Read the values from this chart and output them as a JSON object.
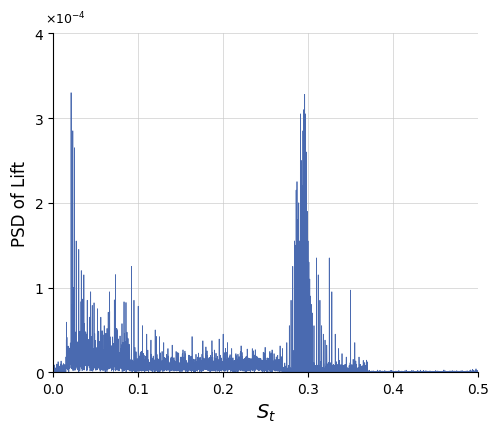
{
  "title": "",
  "xlabel": "$S_t$",
  "ylabel": "PSD of Lift",
  "xlim": [
    0,
    0.5
  ],
  "ylim": [
    0,
    0.0004
  ],
  "line_color": "#4a6ab0",
  "line_width": 0.55,
  "grid_color": "#c8c8c8",
  "background_color": "#ffffff",
  "xlabel_fontsize": 14,
  "ylabel_fontsize": 12,
  "tick_fontsize": 10,
  "noise_floor": 3e-06,
  "noise_seed": 17,
  "left_cluster_peaks": [
    [
      0.021,
      0.00033
    ],
    [
      0.023,
      0.000285
    ],
    [
      0.025,
      0.000265
    ],
    [
      0.027,
      0.000155
    ],
    [
      0.03,
      0.000145
    ],
    [
      0.033,
      0.00012
    ],
    [
      0.036,
      0.000115
    ],
    [
      0.04,
      8.5e-05
    ],
    [
      0.044,
      9.5e-05
    ],
    [
      0.048,
      8.2e-05
    ],
    [
      0.052,
      7.5e-05
    ],
    [
      0.056,
      6.5e-05
    ],
    [
      0.06,
      5.5e-05
    ],
    [
      0.065,
      4.5e-05
    ],
    [
      0.07,
      3.8e-05
    ],
    [
      0.075,
      3.2e-05
    ],
    [
      0.08,
      2.8e-05
    ],
    [
      0.085,
      2.2e-05
    ]
  ],
  "mid_sparse_peaks": [
    [
      0.092,
      0.000125
    ],
    [
      0.095,
      8.5e-05
    ],
    [
      0.1,
      7.8e-05
    ],
    [
      0.105,
      5.5e-05
    ],
    [
      0.11,
      4.5e-05
    ],
    [
      0.115,
      3.8e-05
    ],
    [
      0.12,
      5e-05
    ],
    [
      0.125,
      4.2e-05
    ],
    [
      0.13,
      3.5e-05
    ],
    [
      0.135,
      2.8e-05
    ],
    [
      0.14,
      3.2e-05
    ],
    [
      0.145,
      2.2e-05
    ],
    [
      0.15,
      1.8e-05
    ],
    [
      0.155,
      2.5e-05
    ],
    [
      0.16,
      2e-05
    ],
    [
      0.165,
      1.5e-05
    ],
    [
      0.17,
      1.8e-05
    ],
    [
      0.175,
      1.4e-05
    ],
    [
      0.18,
      1.2e-05
    ],
    [
      0.185,
      2e-05
    ],
    [
      0.19,
      1.8e-05
    ],
    [
      0.195,
      1.5e-05
    ],
    [
      0.2,
      4.5e-05
    ],
    [
      0.205,
      3.5e-05
    ],
    [
      0.21,
      2.8e-05
    ],
    [
      0.215,
      2.2e-05
    ],
    [
      0.22,
      1.8e-05
    ],
    [
      0.225,
      1.5e-05
    ],
    [
      0.23,
      1.2e-05
    ],
    [
      0.24,
      1.8e-05
    ],
    [
      0.245,
      1.4e-05
    ],
    [
      0.25,
      1.2e-05
    ],
    [
      0.255,
      1.8e-05
    ],
    [
      0.26,
      2.2e-05
    ],
    [
      0.265,
      1.5e-05
    ],
    [
      0.27,
      2.8e-05
    ],
    [
      0.275,
      3.5e-05
    ]
  ],
  "main_cluster_peaks": [
    [
      0.278,
      5.5e-05
    ],
    [
      0.28,
      8.5e-05
    ],
    [
      0.282,
      0.000125
    ],
    [
      0.284,
      0.000155
    ],
    [
      0.285,
      0.00015
    ],
    [
      0.286,
      0.000215
    ],
    [
      0.287,
      0.000225
    ],
    [
      0.288,
      0.00018
    ],
    [
      0.289,
      0.0002
    ],
    [
      0.29,
      0.000155
    ],
    [
      0.291,
      0.000305
    ],
    [
      0.292,
      0.00025
    ],
    [
      0.293,
      0.00022
    ],
    [
      0.294,
      0.000285
    ],
    [
      0.295,
      0.00031
    ],
    [
      0.296,
      0.000328
    ],
    [
      0.297,
      0.000305
    ],
    [
      0.298,
      0.00026
    ],
    [
      0.299,
      0.00019
    ],
    [
      0.3,
      0.000155
    ],
    [
      0.301,
      0.00013
    ],
    [
      0.302,
      0.00011
    ],
    [
      0.303,
      9e-05
    ],
    [
      0.304,
      8e-05
    ],
    [
      0.305,
      7e-05
    ],
    [
      0.307,
      5.5e-05
    ],
    [
      0.31,
      0.000135
    ],
    [
      0.312,
      0.000115
    ],
    [
      0.314,
      8.5e-05
    ],
    [
      0.316,
      5.5e-05
    ],
    [
      0.318,
      4.5e-05
    ],
    [
      0.32,
      3.8e-05
    ],
    [
      0.322,
      3.2e-05
    ],
    [
      0.325,
      0.000135
    ],
    [
      0.328,
      9.5e-05
    ],
    [
      0.332,
      4.5e-05
    ],
    [
      0.336,
      2.8e-05
    ],
    [
      0.34,
      2.2e-05
    ],
    [
      0.345,
      1.8e-05
    ],
    [
      0.35,
      9.7e-05
    ],
    [
      0.355,
      3.5e-05
    ],
    [
      0.36,
      1.8e-05
    ],
    [
      0.365,
      1.4e-05
    ],
    [
      0.37,
      1e-05
    ]
  ]
}
